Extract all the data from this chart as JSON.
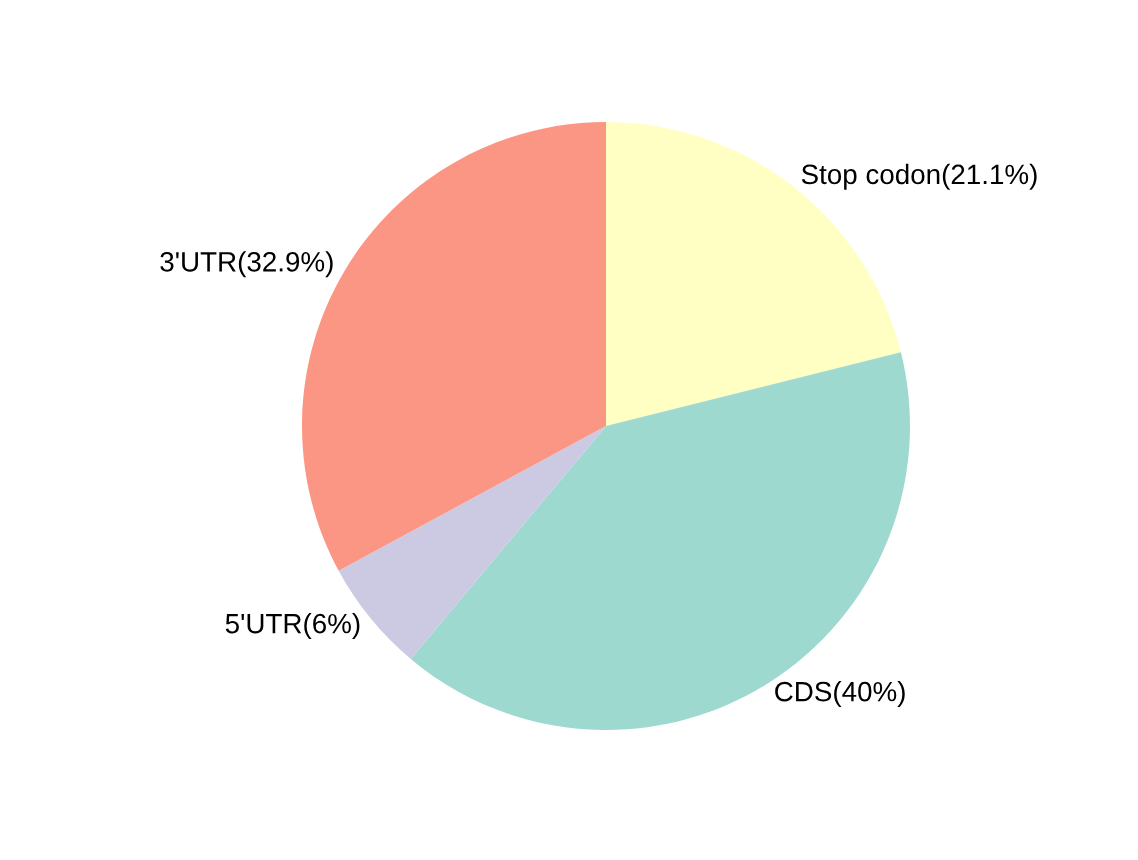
{
  "chart_data": {
    "type": "pie",
    "categories": [
      "Stop codon(21.1%)",
      "CDS(40%)",
      "5'UTR(6%)",
      "3'UTR(32.9%)"
    ],
    "values": [
      21.1,
      40,
      6,
      32.9
    ],
    "colors": [
      "#ffffc4",
      "#9ed9d0",
      "#cccae2",
      "#fb9684"
    ],
    "legend": false
  }
}
